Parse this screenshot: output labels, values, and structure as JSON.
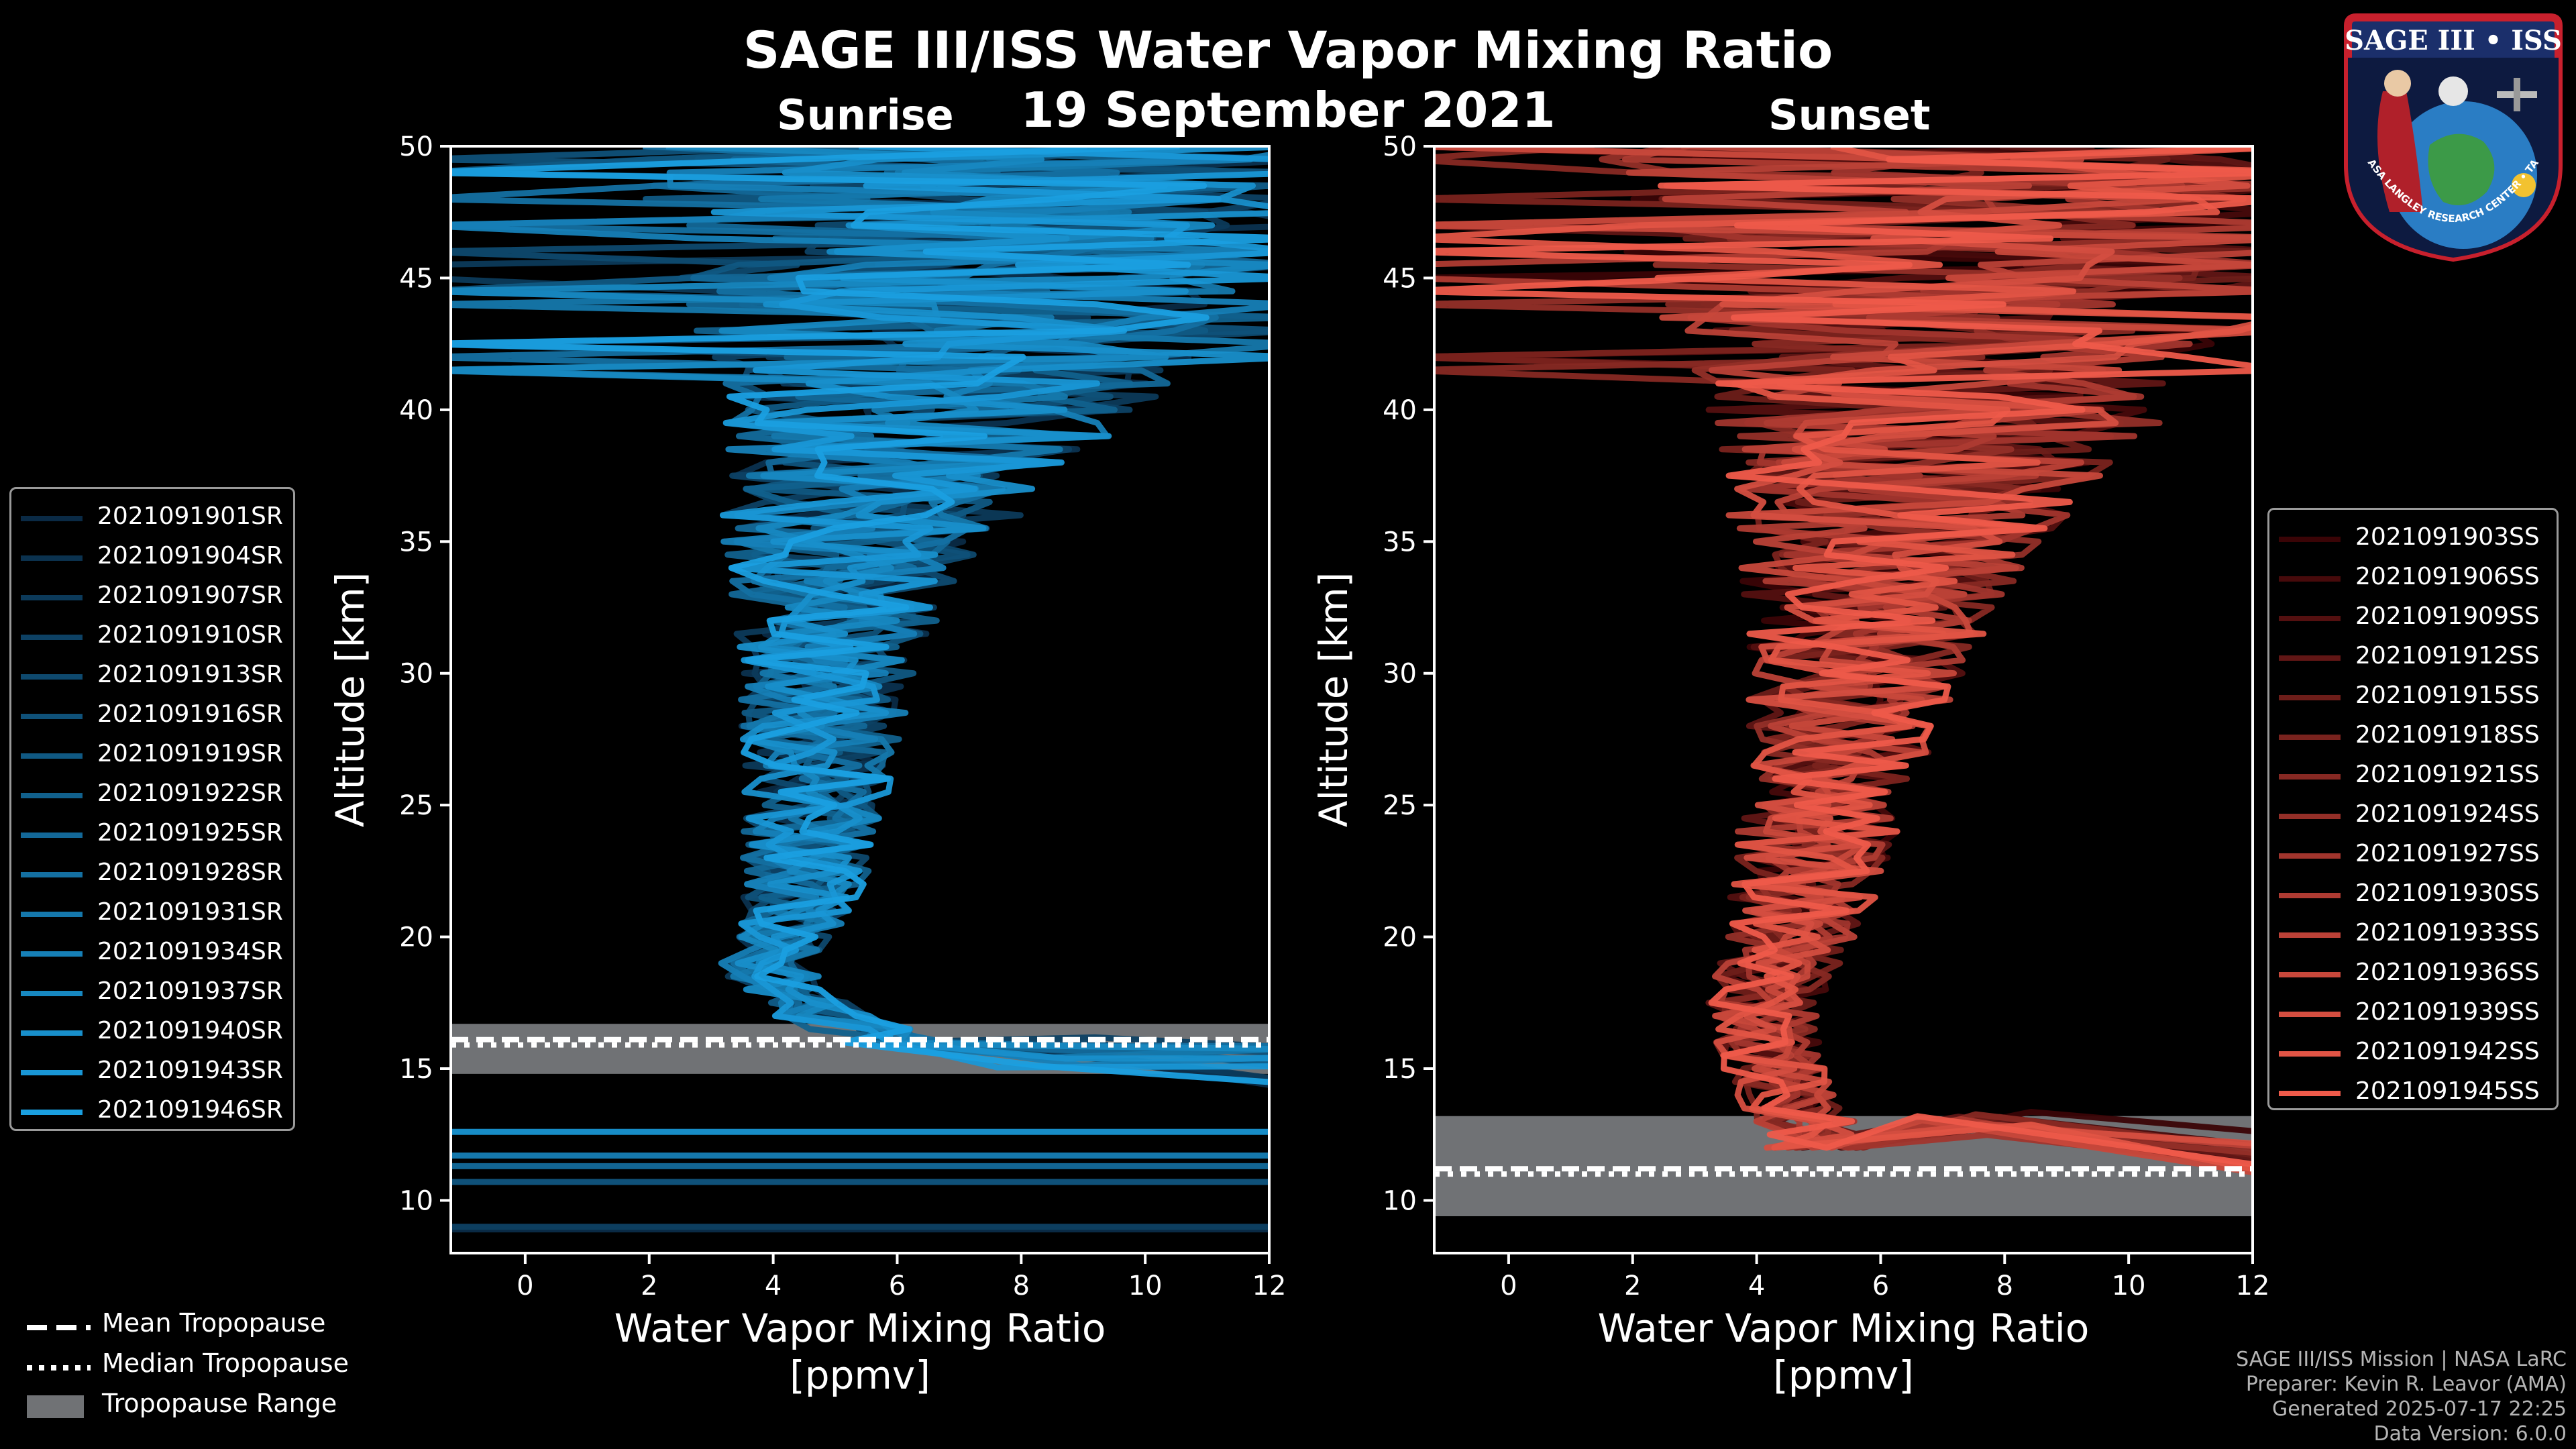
{
  "figure": {
    "title": "SAGE III/ISS Water Vapor Mixing Ratio",
    "date": "19 September 2021",
    "left_subtitle": "Sunrise",
    "right_subtitle": "Sunset"
  },
  "colors": {
    "background": "#000000",
    "sunrise": "#1a9fe0",
    "sunset": "#ee5a4a",
    "tropopause_band": "#707275"
  },
  "chart_data": [
    {
      "type": "line",
      "panel": "Sunrise",
      "xlabel": "Water Vapor Mixing Ratio",
      "xlabel_units": "[ppmv]",
      "ylabel": "Altitude [km]",
      "xlim": [
        -1.2,
        12
      ],
      "ylim": [
        8,
        50
      ],
      "xticks": [
        0,
        2,
        4,
        6,
        8,
        10,
        12
      ],
      "yticks": [
        10,
        15,
        20,
        25,
        30,
        35,
        40,
        45,
        50
      ],
      "profile_shape": {
        "altitude_km": [
          16,
          17,
          18,
          19,
          20,
          21,
          22,
          24,
          26,
          28,
          30,
          32,
          34,
          36,
          38,
          40,
          42,
          44,
          46,
          48,
          50
        ],
        "center_ppmv": [
          6.0,
          4.8,
          4.1,
          3.9,
          4.2,
          4.4,
          4.5,
          4.6,
          4.7,
          4.8,
          4.9,
          5.0,
          5.2,
          5.6,
          6.2,
          6.6,
          7.0,
          7.2,
          7.4,
          7.5,
          7.5
        ],
        "spread_ppmv": [
          0.8,
          0.7,
          0.7,
          0.7,
          0.7,
          0.8,
          0.9,
          1.0,
          1.1,
          1.2,
          1.3,
          1.5,
          1.8,
          2.2,
          2.7,
          3.2,
          3.7,
          4.2,
          4.7,
          5.2,
          5.5
        ]
      },
      "low_altitude_traces_km": [
        8.9,
        9.0,
        10.7,
        11.3,
        11.7,
        12.6
      ],
      "tropopause": {
        "range_km": [
          14.8,
          16.7
        ],
        "mean_km": 16.1,
        "median_km": 15.9
      },
      "series": [
        "2021091901SR",
        "2021091904SR",
        "2021091907SR",
        "2021091910SR",
        "2021091913SR",
        "2021091916SR",
        "2021091919SR",
        "2021091922SR",
        "2021091925SR",
        "2021091928SR",
        "2021091931SR",
        "2021091934SR",
        "2021091937SR",
        "2021091940SR",
        "2021091943SR",
        "2021091946SR"
      ]
    },
    {
      "type": "line",
      "panel": "Sunset",
      "xlabel": "Water Vapor Mixing Ratio",
      "xlabel_units": "[ppmv]",
      "ylabel": "Altitude [km]",
      "xlim": [
        -1.2,
        12
      ],
      "ylim": [
        8,
        50
      ],
      "xticks": [
        0,
        2,
        4,
        6,
        8,
        10,
        12
      ],
      "yticks": [
        10,
        15,
        20,
        25,
        30,
        35,
        40,
        45,
        50
      ],
      "profile_shape": {
        "altitude_km": [
          12,
          13,
          14,
          15,
          16,
          17,
          18,
          19,
          20,
          22,
          24,
          26,
          28,
          30,
          32,
          34,
          36,
          38,
          40,
          42,
          44,
          46,
          48,
          50
        ],
        "center_ppmv": [
          5.0,
          4.7,
          4.5,
          4.3,
          4.2,
          4.1,
          4.2,
          4.4,
          4.6,
          4.8,
          5.0,
          5.2,
          5.4,
          5.6,
          5.8,
          6.0,
          6.3,
          6.6,
          6.9,
          7.1,
          7.3,
          7.4,
          7.5,
          7.5
        ],
        "spread_ppmv": [
          0.8,
          0.8,
          0.8,
          0.8,
          0.8,
          0.8,
          0.9,
          0.9,
          1.0,
          1.1,
          1.2,
          1.3,
          1.4,
          1.6,
          1.8,
          2.1,
          2.5,
          3.0,
          3.5,
          4.0,
          4.5,
          5.0,
          5.4,
          5.6
        ]
      },
      "tropopause": {
        "range_km": [
          9.4,
          13.2
        ],
        "mean_km": 11.2,
        "median_km": 11.0
      },
      "series": [
        "2021091903SS",
        "2021091906SS",
        "2021091909SS",
        "2021091912SS",
        "2021091915SS",
        "2021091918SS",
        "2021091921SS",
        "2021091924SS",
        "2021091927SS",
        "2021091930SS",
        "2021091933SS",
        "2021091936SS",
        "2021091939SS",
        "2021091942SS",
        "2021091945SS"
      ]
    }
  ],
  "tropopause_legend": [
    "Mean Tropopause",
    "Median Tropopause",
    "Tropopause Range"
  ],
  "credits": [
    "SAGE III/ISS Mission | NASA LaRC",
    "Preparer: Kevin R. Leavor (AMA)",
    "Generated 2025-07-17 22:25",
    "Data Version: 6.0.0"
  ],
  "logo": {
    "name": "SAGE III • ISS",
    "ring_text": "BALL • NASA LANGLEY RESEARCH CENTER • TAS-I • ESA"
  }
}
